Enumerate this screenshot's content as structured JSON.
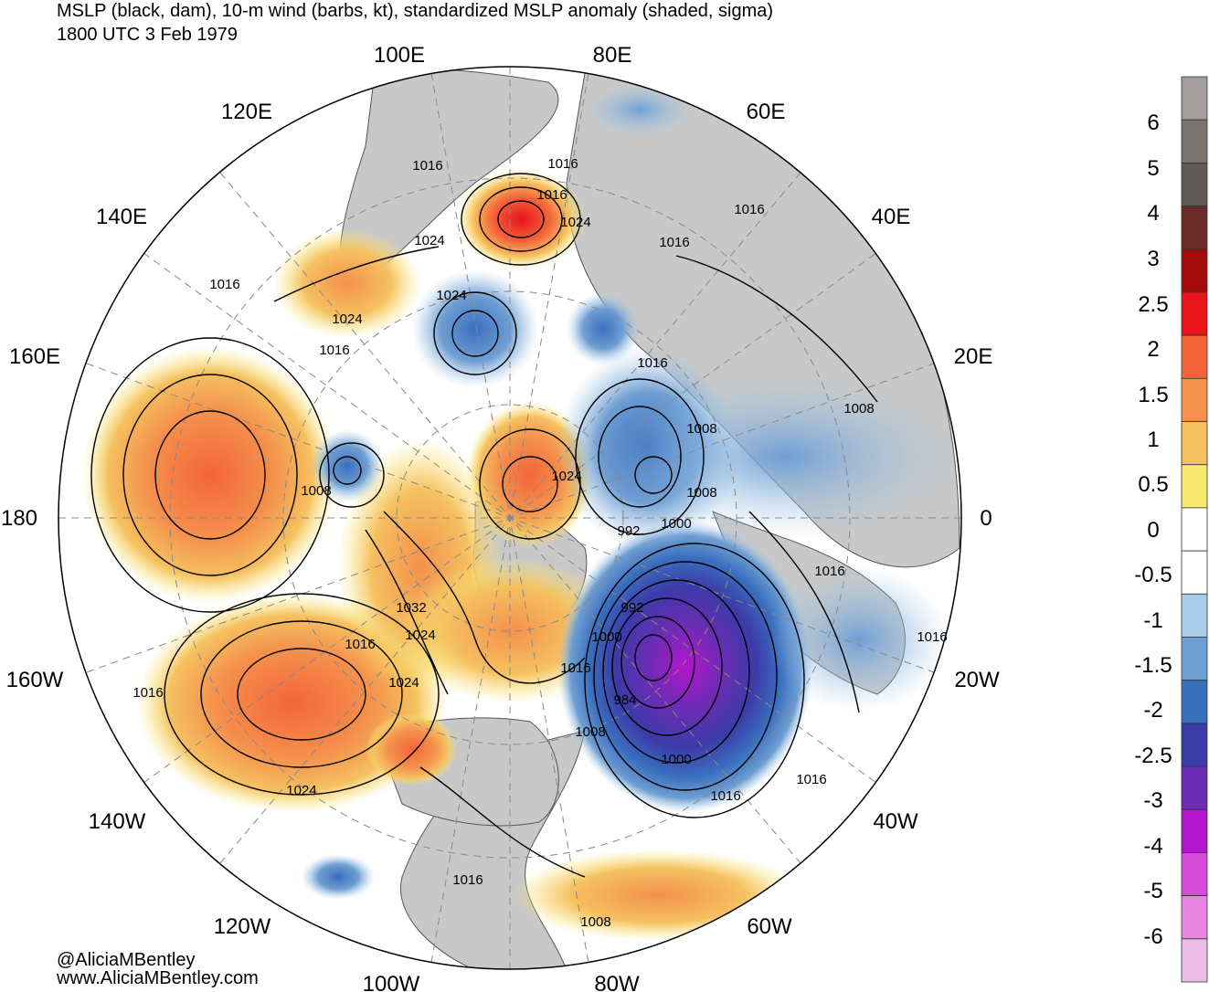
{
  "title": {
    "line1": "MSLP (black, dam), 10-m wind (barbs, kt), standardized MSLP anomaly (shaded, sigma)",
    "line2": "1800 UTC 3 Feb 1979"
  },
  "credits": {
    "handle": "@AliciaMBentley",
    "website": "www.AliciaMBentley.com"
  },
  "longitude_labels": [
    "100E",
    "80E",
    "120E",
    "60E",
    "140E",
    "40E",
    "160E",
    "20E",
    "180",
    "0",
    "160W",
    "20W",
    "140W",
    "40W",
    "120W",
    "60W",
    "100W",
    "80W"
  ],
  "colorbar": {
    "labels": [
      "6",
      "5",
      "4",
      "3",
      "2.5",
      "2",
      "1.5",
      "1",
      "0.5",
      "0",
      "-0.5",
      "-1",
      "-1.5",
      "-2",
      "-2.5",
      "-3",
      "-4",
      "-5",
      "-6"
    ],
    "colors": [
      "#a39d9d",
      "#7a7471",
      "#5f5a58",
      "#6b2b2b",
      "#a30a0a",
      "#e8141a",
      "#f4653a",
      "#f4914d",
      "#f5c160",
      "#f9e86f",
      "#ffffff",
      "#ffffff",
      "#a9cde8",
      "#6f9ed3",
      "#3a6fbe",
      "#3b3ba8",
      "#6a2db3",
      "#b316cc",
      "#d64bd9",
      "#e785e3",
      "#ebbde6"
    ]
  },
  "isobar_labels": [
    "1016",
    "1016",
    "1016",
    "1024",
    "1024",
    "1016",
    "1016",
    "1024",
    "1024",
    "1016",
    "1016",
    "1016",
    "1008",
    "1024",
    "1008",
    "1008",
    "992",
    "1000",
    "1008",
    "1016",
    "1032",
    "1024",
    "1024",
    "992",
    "1000",
    "1016",
    "984",
    "1008",
    "1000",
    "1016",
    "1016",
    "1016",
    "1024",
    "1016",
    "1016",
    "1008",
    "1016"
  ],
  "anomaly_centers": [
    {
      "sign": "positive",
      "level": "3"
    },
    {
      "sign": "positive",
      "level": "2"
    },
    {
      "sign": "positive",
      "level": "2"
    },
    {
      "sign": "negative",
      "level": "-2"
    },
    {
      "sign": "negative",
      "level": "-2"
    },
    {
      "sign": "negative",
      "level": "-4"
    }
  ]
}
